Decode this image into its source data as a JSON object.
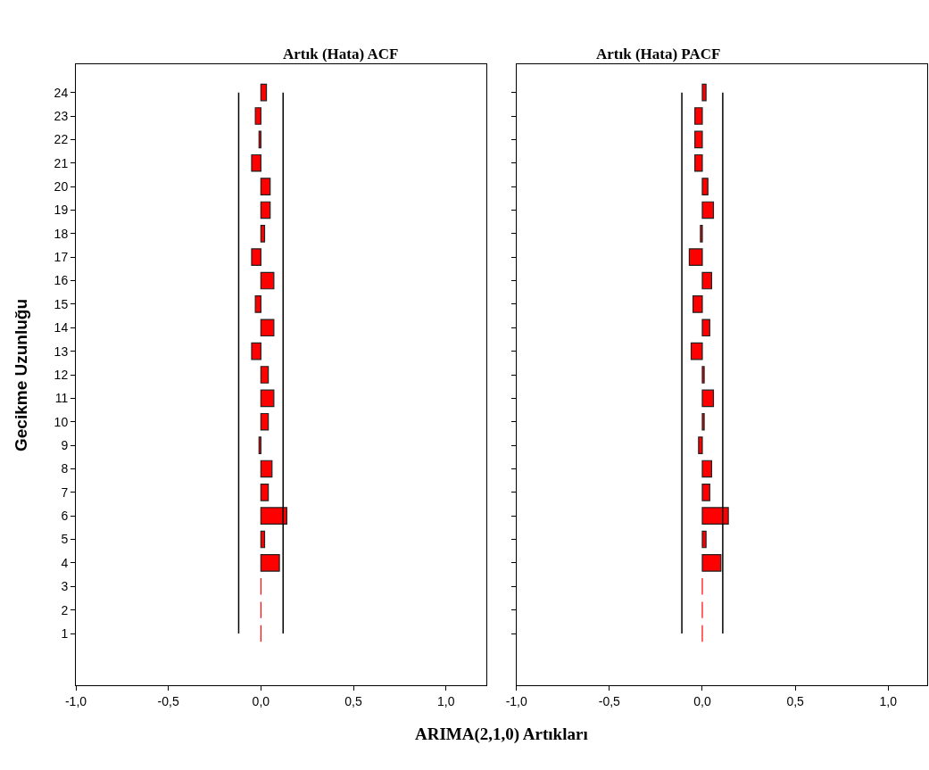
{
  "chart_data": [
    {
      "type": "bar",
      "orientation": "horizontal",
      "title": "Artık (Hata) ACF",
      "xlabel": "ARIMA(2,1,0) Artıkları",
      "ylabel": "Gecikme Uzunluğu",
      "categories": [
        "24",
        "23",
        "22",
        "21",
        "20",
        "19",
        "18",
        "17",
        "16",
        "15",
        "14",
        "13",
        "12",
        "11",
        "10",
        "9",
        "8",
        "7",
        "6",
        "5",
        "4",
        "3",
        "2",
        "1"
      ],
      "series": [
        {
          "color": "#ff0000",
          "values": [
            0.03,
            -0.03,
            -0.01,
            -0.05,
            0.05,
            0.05,
            0.02,
            -0.05,
            0.07,
            -0.03,
            0.07,
            -0.05,
            0.04,
            0.07,
            0.04,
            -0.01,
            0.06,
            0.04,
            0.14,
            0.02,
            0.1,
            0.0,
            0.0,
            0.0
          ]
        }
      ],
      "xlim": [
        -1.0,
        1.22
      ],
      "xticks": [
        {
          "value": -1.0,
          "label": "-1,0"
        },
        {
          "value": -0.5,
          "label": "-0,5"
        },
        {
          "value": 0.0,
          "label": "0,0"
        },
        {
          "value": 0.5,
          "label": "0,5"
        },
        {
          "value": 1.0,
          "label": "1,0"
        }
      ],
      "ref_lines": [
        {
          "axis": "x",
          "value": -0.12,
          "color": "#000000"
        },
        {
          "axis": "x",
          "value": 0.12,
          "color": "#000000"
        }
      ]
    },
    {
      "type": "bar",
      "orientation": "horizontal",
      "title": "Artık (Hata) PACF",
      "categories": [
        "24",
        "23",
        "22",
        "21",
        "20",
        "19",
        "18",
        "17",
        "16",
        "15",
        "14",
        "13",
        "12",
        "11",
        "10",
        "9",
        "8",
        "7",
        "6",
        "5",
        "4",
        "3",
        "2",
        "1"
      ],
      "series": [
        {
          "color": "#ff0000",
          "values": [
            0.02,
            -0.04,
            -0.04,
            -0.04,
            0.03,
            0.06,
            -0.01,
            -0.07,
            0.05,
            -0.05,
            0.04,
            -0.06,
            0.01,
            0.06,
            0.01,
            -0.02,
            0.05,
            0.04,
            0.14,
            0.02,
            0.1,
            0.0,
            0.0,
            0.0
          ]
        }
      ],
      "xlim": [
        -1.0,
        1.21
      ],
      "xticks": [
        {
          "value": -1.0,
          "label": "-1,0"
        },
        {
          "value": -0.5,
          "label": "-0,5"
        },
        {
          "value": 0.0,
          "label": "0,0"
        },
        {
          "value": 0.5,
          "label": "0,5"
        },
        {
          "value": 1.0,
          "label": "1,0"
        }
      ],
      "ref_lines": [
        {
          "axis": "x",
          "value": -0.11,
          "color": "#000000"
        },
        {
          "axis": "x",
          "value": 0.11,
          "color": "#000000"
        }
      ],
      "tick_labels": "x"
    }
  ]
}
